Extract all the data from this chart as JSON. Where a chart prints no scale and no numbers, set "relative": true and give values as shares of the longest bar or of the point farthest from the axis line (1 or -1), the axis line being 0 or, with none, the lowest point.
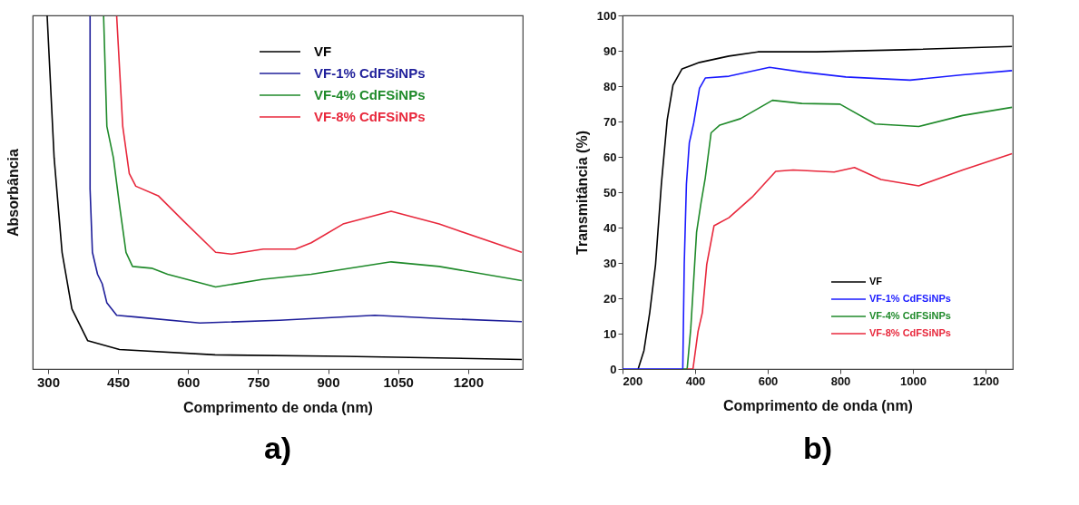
{
  "chart_data": [
    {
      "type": "line",
      "xlabel": "Comprimento de onda (nm)",
      "ylabel": "Absorbância",
      "relative": true,
      "tick_labels": "x",
      "xlim": [
        267,
        1317
      ],
      "xticks": [
        300,
        450,
        600,
        750,
        900,
        1050,
        1200
      ],
      "legend": "top right",
      "annotations": [
        "a)"
      ],
      "series": [
        {
          "name": "VF",
          "color": "#000000",
          "x": [
            298,
            313,
            330,
            351,
            385,
            453,
            658,
            932,
            1315
          ],
          "values": [
            1.0,
            0.597,
            0.33,
            0.17,
            0.08,
            0.055,
            0.04,
            0.036,
            0.027
          ]
        },
        {
          "name": "VF-1% CdFSiNPs",
          "color": "#1f1f9a",
          "x": [
            390,
            390,
            395,
            406,
            416,
            426,
            447,
            488,
            625,
            796,
            1000,
            1137,
            1315
          ],
          "values": [
            0.998,
            0.509,
            0.33,
            0.268,
            0.241,
            0.187,
            0.152,
            0.147,
            0.13,
            0.138,
            0.152,
            0.143,
            0.134
          ]
        },
        {
          "name": "VF-4% CdFSiNPs",
          "color": "#1f8a2a",
          "x": [
            419,
            426,
            440,
            453,
            467,
            481,
            522,
            556,
            659,
            761,
            864,
            1035,
            1138,
            1315
          ],
          "values": [
            0.998,
            0.686,
            0.597,
            0.464,
            0.33,
            0.29,
            0.285,
            0.268,
            0.232,
            0.254,
            0.268,
            0.303,
            0.29,
            0.25
          ]
        },
        {
          "name": "VF-8% CdFSiNPs",
          "color": "#e8283c",
          "x": [
            447,
            460,
            474,
            488,
            536,
            590,
            659,
            693,
            761,
            830,
            864,
            932,
            1035,
            1138,
            1315
          ],
          "values": [
            0.998,
            0.686,
            0.553,
            0.517,
            0.49,
            0.419,
            0.33,
            0.325,
            0.339,
            0.339,
            0.357,
            0.41,
            0.446,
            0.41,
            0.33
          ]
        }
      ]
    },
    {
      "type": "line",
      "xlabel": "Comprimento de onda (nm)",
      "ylabel": "Transmitância (%)",
      "xlim": [
        200,
        1275
      ],
      "xticks": [
        200,
        400,
        600,
        800,
        1000,
        1200
      ],
      "ylim": [
        0,
        100
      ],
      "yticks": [
        0,
        10,
        20,
        30,
        40,
        50,
        60,
        70,
        80,
        90,
        100
      ],
      "legend": "bottom right",
      "annotations": [
        "b)"
      ],
      "series": [
        {
          "name": "VF",
          "color": "#000000",
          "x": [
            243,
            259,
            275,
            291,
            307,
            323,
            339,
            364,
            412,
            493,
            573,
            734,
            976,
            1273
          ],
          "values": [
            0,
            5.2,
            16,
            29.6,
            52.3,
            70.4,
            80.3,
            84.9,
            86.7,
            88.5,
            89.7,
            89.7,
            90.3,
            91.2
          ]
        },
        {
          "name": "VF-1% CdFSiNPs",
          "color": "#1a1aff",
          "x": [
            200,
            366,
            370,
            376,
            384,
            396,
            412,
            428,
            493,
            605,
            694,
            815,
            992,
            1137,
            1273
          ],
          "values": [
            0,
            0,
            29.6,
            52.3,
            64,
            69.5,
            79.4,
            82.3,
            82.8,
            85.3,
            84,
            82.6,
            81.7,
            83.2,
            84.4
          ]
        },
        {
          "name": "VF-4% CdFSiNPs",
          "color": "#1f8a2a",
          "x": [
            366,
            378,
            388,
            404,
            416,
            428,
            444,
            468,
            525,
            613,
            694,
            799,
            896,
            1016,
            1137,
            1273
          ],
          "values": [
            0,
            0,
            11.5,
            38.7,
            46.8,
            54.1,
            66.8,
            69,
            70.8,
            76,
            75.1,
            74.9,
            69.3,
            68.6,
            71.7,
            74
          ]
        },
        {
          "name": "VF-8% CdFSiNPs",
          "color": "#e8283c",
          "x": [
            378,
            394,
            408,
            420,
            432,
            452,
            493,
            557,
            622,
            670,
            783,
            839,
            912,
            1016,
            1137,
            1273
          ],
          "values": [
            0,
            0,
            10.6,
            16,
            29.6,
            40.5,
            42.8,
            48.6,
            55.9,
            56.3,
            55.7,
            57,
            53.6,
            51.8,
            56.3,
            60.9
          ]
        }
      ]
    }
  ]
}
